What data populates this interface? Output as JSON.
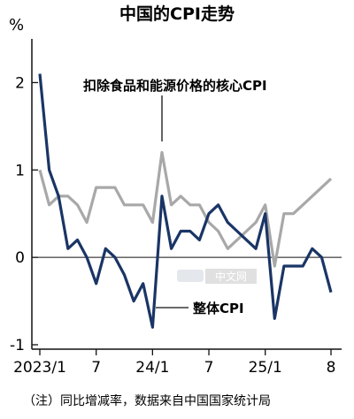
{
  "chart_data": {
    "type": "line",
    "title": "中国的CPI走势",
    "ylabel": "%",
    "xlabel": "",
    "ylim": [
      -1,
      2.5
    ],
    "yticks": [
      "-1",
      "0",
      "1",
      "2"
    ],
    "x_categories": [
      "2023/1",
      "2023/2",
      "2023/3",
      "2023/4",
      "2023/5",
      "2023/6",
      "2023/7",
      "2023/8",
      "2023/9",
      "2023/10",
      "2023/11",
      "2023/12",
      "2024/1",
      "2024/2",
      "2024/3",
      "2024/4",
      "2024/5",
      "2024/6",
      "2024/7",
      "2024/8",
      "2024/9",
      "2024/10",
      "2024/11",
      "2024/12",
      "2025/1",
      "2025/2",
      "2025/3",
      "2025/4",
      "2025/5",
      "2025/6",
      "2025/7",
      "2025/8"
    ],
    "xtick_labels": [
      {
        "index": 0,
        "label": "2023/1"
      },
      {
        "index": 6,
        "label": "7"
      },
      {
        "index": 12,
        "label": "24/1"
      },
      {
        "index": 18,
        "label": "7"
      },
      {
        "index": 24,
        "label": "25/1"
      },
      {
        "index": 31,
        "label": "8"
      }
    ],
    "grid": false,
    "zero_line": true,
    "series": [
      {
        "name": "整体CPI",
        "color": "#1a3566",
        "values": [
          2.1,
          1.0,
          0.7,
          0.1,
          0.2,
          0.0,
          -0.3,
          0.1,
          0.0,
          -0.2,
          -0.5,
          -0.3,
          -0.8,
          0.7,
          0.1,
          0.3,
          0.3,
          0.2,
          0.5,
          0.6,
          0.4,
          0.3,
          0.2,
          0.1,
          0.5,
          -0.7,
          -0.1,
          -0.1,
          -0.1,
          0.1,
          0.0,
          -0.4
        ]
      },
      {
        "name": "扣除食品和能源价格的核心CPI",
        "color": "#a8a8a8",
        "values": [
          1.0,
          0.6,
          0.7,
          0.7,
          0.6,
          0.4,
          0.8,
          0.8,
          0.8,
          0.6,
          0.6,
          0.6,
          0.4,
          1.2,
          0.6,
          0.7,
          0.6,
          0.6,
          0.4,
          0.3,
          0.1,
          0.2,
          0.3,
          0.4,
          0.6,
          -0.1,
          0.5,
          0.5,
          0.6,
          0.7,
          0.8,
          0.9
        ]
      }
    ],
    "note": "（注）同比增减率，数据来自中国国家统计局"
  },
  "watermark": "中文网"
}
